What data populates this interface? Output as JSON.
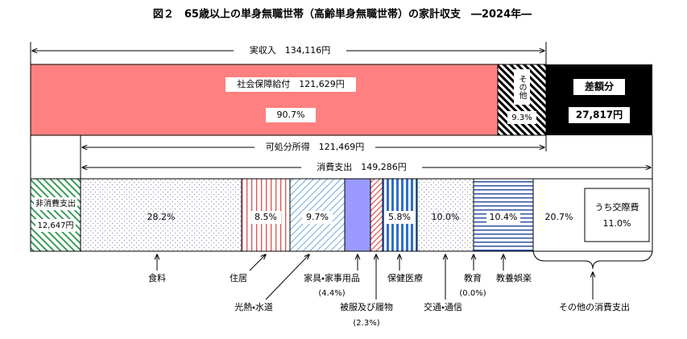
{
  "title": "図２　65歳以上の単身無職世帯（高齢単身無職世帯）の家計収支　―2024年―",
  "income": {
    "total": "実収入　134,116円",
    "social_security": {
      "label": "社会保障給付　121,629円",
      "share": "90.7%"
    },
    "other": {
      "label": "その他",
      "share": "9.3%"
    },
    "deficit": {
      "label": "差額分",
      "amount": "27,817円"
    }
  },
  "disposable": "可処分所得　121,469円",
  "consumption": "消費支出　149,286円",
  "non_consumption": {
    "label": "非消費支出",
    "amount": "12,647円"
  },
  "expenses": [
    {
      "name": "食料",
      "share": "28.2%"
    },
    {
      "name": "住居",
      "share": "8.5%"
    },
    {
      "name": "光熱・水道",
      "share": "9.7%"
    },
    {
      "name": "家具・家事用品",
      "share": "(4.4%)"
    },
    {
      "name": "被服及び履物",
      "share": "(2.3%)"
    },
    {
      "name": "保健医療",
      "share": "5.8%"
    },
    {
      "name": "交通・通信",
      "share": "10.0%"
    },
    {
      "name": "教育",
      "share": "(0.0%)"
    },
    {
      "name": "教養娯楽",
      "share": "10.4%"
    },
    {
      "name": "その他の消費支出",
      "share": "20.7%"
    }
  ],
  "social_expense": {
    "label": "うち交際費",
    "share": "11.0%"
  }
}
